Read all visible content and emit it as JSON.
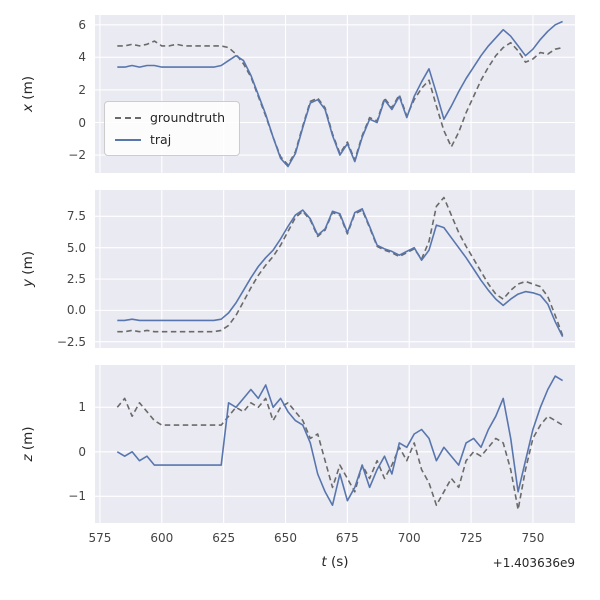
{
  "chart_data": {
    "type": "line",
    "shared": {
      "xlabel_letter": "t",
      "xlabel_unit": " (s)",
      "offset_text": "+1.403636e9",
      "xlim": [
        573,
        767
      ],
      "xticks": [
        575,
        600,
        625,
        650,
        675,
        700,
        725,
        750
      ],
      "xticklabels": [
        "575",
        "600",
        "625",
        "650",
        "675",
        "700",
        "725",
        "750"
      ],
      "colors": {
        "axes_background": "#eaeaf2",
        "grid": "#ffffff",
        "tick_text": "#444444",
        "label_text": "#262626"
      },
      "t": [
        582,
        585,
        588,
        591,
        594,
        597,
        600,
        603,
        606,
        609,
        612,
        615,
        618,
        621,
        624,
        627,
        630,
        633,
        636,
        639,
        642,
        645,
        648,
        651,
        654,
        657,
        660,
        663,
        666,
        669,
        672,
        675,
        678,
        681,
        684,
        687,
        690,
        693,
        696,
        699,
        702,
        705,
        708,
        711,
        714,
        717,
        720,
        723,
        726,
        729,
        732,
        735,
        738,
        741,
        744,
        747,
        750,
        753,
        756,
        759,
        762
      ]
    },
    "subplots": [
      {
        "ylabel_letter": "x",
        "ylabel_unit": " (m)",
        "ylim": [
          -3.1,
          6.6
        ],
        "yticks": [
          -2,
          0,
          2,
          4,
          6
        ],
        "yticklabels": [
          "−2",
          "0",
          "2",
          "4",
          "6"
        ],
        "show_xticks": false,
        "legend": true,
        "series": [
          {
            "name": "groundtruth",
            "style": "dashed",
            "color": "#6a6a6a",
            "values": [
              4.7,
              4.7,
              4.8,
              4.7,
              4.8,
              5.0,
              4.7,
              4.7,
              4.8,
              4.7,
              4.7,
              4.7,
              4.7,
              4.7,
              4.7,
              4.6,
              4.2,
              3.6,
              2.8,
              1.6,
              0.4,
              -0.9,
              -2.1,
              -2.6,
              -1.8,
              -0.2,
              1.3,
              1.5,
              0.9,
              -0.7,
              -1.9,
              -1.2,
              -2.3,
              -0.8,
              0.3,
              0.1,
              1.5,
              0.9,
              1.7,
              0.4,
              1.4,
              2.1,
              2.6,
              1.0,
              -0.5,
              -1.5,
              -0.6,
              0.6,
              1.6,
              2.6,
              3.4,
              4.1,
              4.6,
              4.9,
              4.4,
              3.7,
              3.9,
              4.3,
              4.2,
              4.5,
              4.6
            ]
          },
          {
            "name": "traj",
            "style": "solid",
            "color": "#5876ae",
            "values": [
              3.4,
              3.4,
              3.5,
              3.4,
              3.5,
              3.5,
              3.4,
              3.4,
              3.4,
              3.4,
              3.4,
              3.4,
              3.4,
              3.4,
              3.5,
              3.8,
              4.1,
              3.8,
              2.9,
              1.7,
              0.5,
              -0.9,
              -2.2,
              -2.7,
              -1.9,
              -0.3,
              1.2,
              1.4,
              0.8,
              -0.8,
              -2.0,
              -1.3,
              -2.4,
              -0.9,
              0.2,
              0.0,
              1.4,
              0.8,
              1.6,
              0.3,
              1.6,
              2.5,
              3.3,
              1.8,
              0.2,
              1.0,
              1.9,
              2.7,
              3.4,
              4.1,
              4.7,
              5.2,
              5.7,
              5.3,
              4.7,
              4.1,
              4.5,
              5.1,
              5.6,
              6.0,
              6.2
            ]
          }
        ]
      },
      {
        "ylabel_letter": "y",
        "ylabel_unit": " (m)",
        "ylim": [
          -3.0,
          9.6
        ],
        "yticks": [
          -2.5,
          0.0,
          2.5,
          5.0,
          7.5
        ],
        "yticklabels": [
          "−2.5",
          "0.0",
          "2.5",
          "5.0",
          "7.5"
        ],
        "show_xticks": false,
        "legend": false,
        "series": [
          {
            "name": "groundtruth",
            "style": "dashed",
            "color": "#6a6a6a",
            "values": [
              -1.7,
              -1.7,
              -1.6,
              -1.7,
              -1.6,
              -1.7,
              -1.7,
              -1.7,
              -1.7,
              -1.7,
              -1.7,
              -1.7,
              -1.7,
              -1.7,
              -1.6,
              -1.2,
              -0.4,
              0.7,
              1.8,
              2.8,
              3.6,
              4.3,
              5.2,
              6.3,
              7.4,
              7.9,
              7.2,
              5.9,
              6.4,
              7.8,
              7.6,
              6.1,
              7.7,
              8.0,
              6.6,
              5.1,
              4.8,
              4.6,
              4.3,
              4.6,
              4.9,
              4.1,
              5.5,
              8.3,
              9.0,
              7.6,
              6.2,
              5.1,
              4.1,
              3.1,
              2.1,
              1.3,
              0.9,
              1.6,
              2.1,
              2.3,
              2.1,
              1.9,
              1.1,
              -0.4,
              -2.0
            ]
          },
          {
            "name": "traj",
            "style": "solid",
            "color": "#5876ae",
            "values": [
              -0.8,
              -0.8,
              -0.7,
              -0.8,
              -0.8,
              -0.8,
              -0.8,
              -0.8,
              -0.8,
              -0.8,
              -0.8,
              -0.8,
              -0.8,
              -0.8,
              -0.7,
              -0.2,
              0.6,
              1.6,
              2.6,
              3.5,
              4.2,
              4.8,
              5.7,
              6.7,
              7.6,
              8.0,
              7.3,
              6.0,
              6.5,
              7.9,
              7.7,
              6.2,
              7.8,
              8.1,
              6.7,
              5.2,
              4.9,
              4.7,
              4.4,
              4.7,
              5.0,
              4.0,
              4.8,
              6.8,
              6.6,
              5.8,
              5.0,
              4.2,
              3.3,
              2.4,
              1.6,
              0.9,
              0.4,
              0.9,
              1.3,
              1.5,
              1.4,
              1.2,
              0.5,
              -0.9,
              -2.1
            ]
          }
        ]
      },
      {
        "ylabel_letter": "z",
        "ylabel_unit": " (m)",
        "ylim": [
          -1.6,
          1.95
        ],
        "yticks": [
          -1,
          0,
          1
        ],
        "yticklabels": [
          "−1",
          "0",
          "1"
        ],
        "show_xticks": true,
        "legend": false,
        "series": [
          {
            "name": "groundtruth",
            "style": "dashed",
            "color": "#6a6a6a",
            "values": [
              1.0,
              1.2,
              0.8,
              1.1,
              0.9,
              0.7,
              0.6,
              0.6,
              0.6,
              0.6,
              0.6,
              0.6,
              0.6,
              0.6,
              0.6,
              0.8,
              1.0,
              0.9,
              1.1,
              1.0,
              1.2,
              0.7,
              1.0,
              1.1,
              0.9,
              0.7,
              0.3,
              0.4,
              -0.2,
              -0.8,
              -0.3,
              -0.6,
              -0.9,
              -0.3,
              -0.6,
              -0.2,
              -0.6,
              -0.3,
              0.1,
              -0.2,
              0.2,
              -0.4,
              -0.7,
              -1.2,
              -0.9,
              -0.6,
              -0.8,
              -0.2,
              0.0,
              -0.1,
              0.1,
              0.3,
              0.2,
              -0.4,
              -1.3,
              -0.4,
              0.3,
              0.6,
              0.8,
              0.7,
              0.6
            ]
          },
          {
            "name": "traj",
            "style": "solid",
            "color": "#5876ae",
            "values": [
              0.0,
              -0.1,
              0.0,
              -0.2,
              -0.1,
              -0.3,
              -0.3,
              -0.3,
              -0.3,
              -0.3,
              -0.3,
              -0.3,
              -0.3,
              -0.3,
              -0.3,
              1.1,
              1.0,
              1.2,
              1.4,
              1.2,
              1.5,
              1.0,
              1.2,
              0.9,
              0.7,
              0.6,
              0.2,
              -0.5,
              -0.9,
              -1.2,
              -0.5,
              -1.1,
              -0.8,
              -0.3,
              -0.8,
              -0.4,
              -0.1,
              -0.5,
              0.2,
              0.1,
              0.4,
              0.5,
              0.3,
              -0.2,
              0.1,
              -0.1,
              -0.3,
              0.2,
              0.3,
              0.1,
              0.5,
              0.8,
              1.2,
              0.3,
              -0.9,
              -0.2,
              0.5,
              1.0,
              1.4,
              1.7,
              1.6
            ]
          }
        ]
      }
    ]
  }
}
